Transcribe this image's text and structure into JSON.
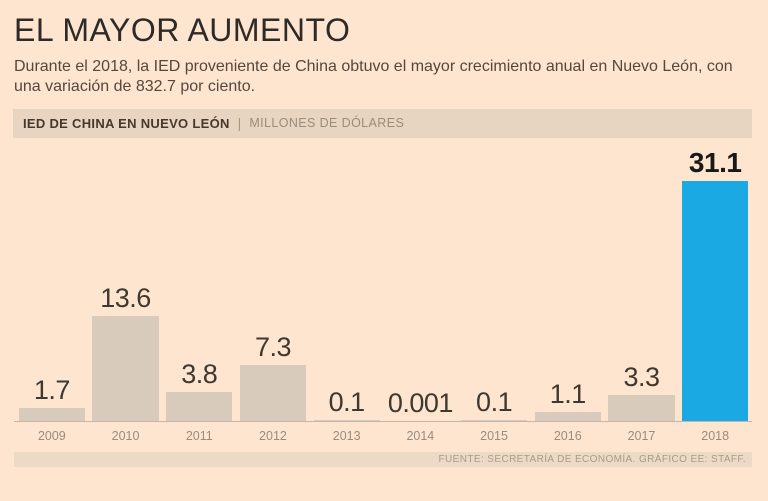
{
  "page": {
    "title": "EL MAYOR AUMENTO",
    "subtitle": "Durante el 2018, la IED proveniente de China obtuvo el mayor crecimiento anual en Nuevo León, con una variación de 832.7 por ciento.",
    "section": {
      "label": "IED DE CHINA EN NUEVO LEÓN",
      "divider": "|",
      "units": "MILLONES DE DÓLARES"
    },
    "source": "FUENTE: SECRETARÍA DE ECONOMÍA. GRÁFICO EE: STAFF."
  },
  "colors": {
    "background": "#fde5d0",
    "section_band": "#e7d5c1",
    "footer_band": "#ecdac6",
    "bar": "#d8cbbc",
    "highlight_bar": "#1aa9e2",
    "axis_line": "#c3b7a9",
    "title_text": "#2d2a27",
    "subtitle_text": "#57473b",
    "value_text": "#3f382f",
    "year_text": "#9b8b7b"
  },
  "chart_data": {
    "type": "bar",
    "title": "IED DE CHINA EN NUEVO LEÓN",
    "units_label": "MILLONES DE DÓLARES",
    "categories": [
      "2009",
      "2010",
      "2011",
      "2012",
      "2013",
      "2014",
      "2015",
      "2016",
      "2017",
      "2018"
    ],
    "values": [
      1.7,
      13.6,
      3.8,
      7.3,
      0.1,
      0.001,
      0.1,
      1.1,
      3.3,
      31.1
    ],
    "value_labels": [
      "1.7",
      "13.6",
      "3.8",
      "7.3",
      "0.1",
      "0.001",
      "0.1",
      "1.1",
      "3.3",
      "31.1"
    ],
    "highlight_index": 9,
    "highlight_category": "2018",
    "ylim": [
      0,
      31.1
    ],
    "grid": false,
    "legend": "none",
    "bar_color": "#d8cbbc",
    "highlight_color": "#1aa9e2"
  }
}
